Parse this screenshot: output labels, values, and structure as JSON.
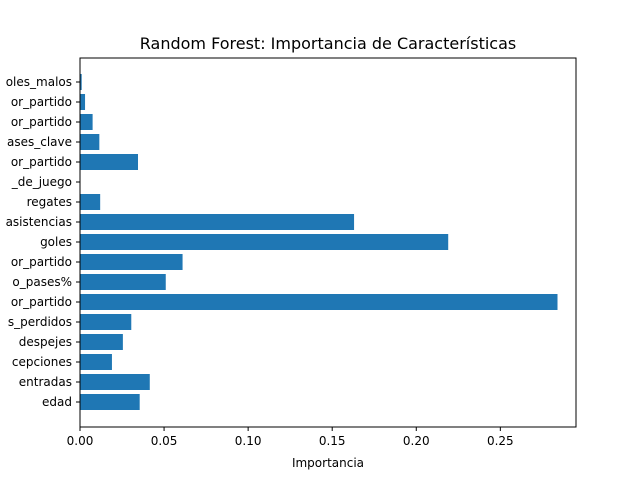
{
  "chart_data": {
    "type": "bar",
    "orientation": "horizontal",
    "title": "Random Forest: Importancia de Características",
    "xlabel": "Importancia",
    "ylabel": "",
    "xlim": [
      0,
      0.295
    ],
    "xticks": [
      0.0,
      0.05,
      0.1,
      0.15,
      0.2,
      0.25
    ],
    "xtick_labels": [
      "0.00",
      "0.05",
      "0.10",
      "0.15",
      "0.20",
      "0.25"
    ],
    "bar_color": "#1f77b4",
    "grid": false,
    "categories": [
      "edad",
      "entradas",
      "recepciones",
      "despejes",
      "balones_perdidos",
      "tiros_por_partido",
      "acierto_pases%",
      "pases_por_partido",
      "goles",
      "asistencias",
      "regates",
      "tiempo_de_juego",
      "faltas_por_partido",
      "pases_clave",
      "centros_por_partido",
      "duelos_por_partido",
      "controles_malos"
    ],
    "category_labels": [
      "edad",
      "entradas",
      "cepciones",
      "despejes",
      "s_perdidos",
      "or_partido",
      "o_pases%",
      "or_partido",
      "goles",
      "asistencias",
      "regates",
      "_de_juego",
      "or_partido",
      "ases_clave",
      "or_partido",
      "or_partido",
      "oles_malos"
    ],
    "values": [
      0.0355,
      0.0415,
      0.019,
      0.0255,
      0.0305,
      0.284,
      0.051,
      0.061,
      0.219,
      0.163,
      0.012,
      0.0,
      0.0345,
      0.0115,
      0.0075,
      0.003,
      0.001
    ]
  }
}
